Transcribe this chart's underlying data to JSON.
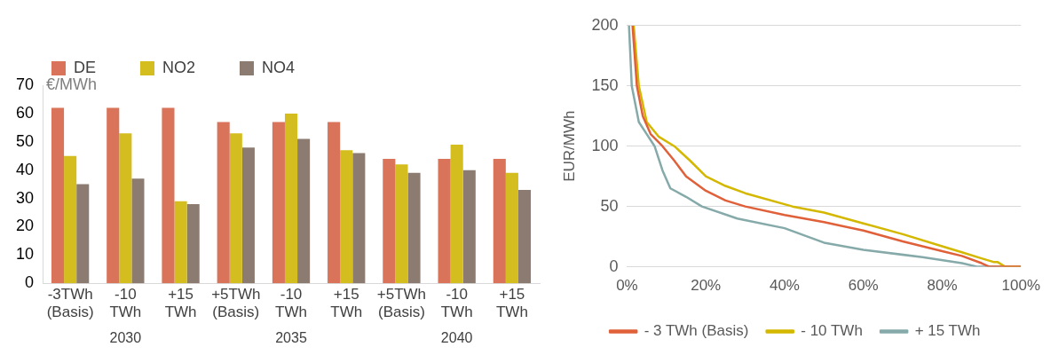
{
  "chart_data": [
    {
      "type": "bar",
      "ylabel": "€/MWh",
      "categories": [
        "-3TWh (Basis)",
        "-10 TWh",
        "+15 TWh",
        "+5TWh (Basis)",
        "-10 TWh",
        "+15 TWh",
        "+5TWh (Basis)",
        "-10 TWh",
        "+15 TWh"
      ],
      "series": [
        {
          "name": "DE",
          "color": "#d9735a",
          "values": [
            62,
            62,
            62,
            57,
            57,
            57,
            44,
            44,
            44
          ]
        },
        {
          "name": "NO2",
          "color": "#d4bd1e",
          "values": [
            45,
            53,
            29,
            53,
            60,
            47,
            42,
            49,
            39
          ]
        },
        {
          "name": "NO4",
          "color": "#8c7b70",
          "values": [
            35,
            37,
            28,
            48,
            51,
            46,
            39,
            40,
            33
          ]
        }
      ],
      "ylim": [
        0,
        70
      ],
      "yticks": [
        0,
        10,
        20,
        30,
        40,
        50,
        60,
        70
      ],
      "grid": false,
      "legend": "top",
      "annotations": [
        "2030",
        "2035",
        "2040"
      ]
    },
    {
      "type": "line",
      "ylabel": "EUR/MWh",
      "series": [
        {
          "name": "- 3 TWh (Basis)",
          "color": "#e0603a",
          "x": [
            1.4,
            2.5,
            4,
            6,
            9,
            12,
            15,
            20,
            25,
            30,
            40,
            50,
            60,
            70,
            80,
            85,
            90,
            92,
            100
          ],
          "values": [
            200,
            150,
            125,
            110,
            100,
            88,
            75,
            63,
            55,
            50,
            43,
            37,
            30,
            21,
            13,
            9,
            3,
            0,
            0
          ]
        },
        {
          "name": "- 10 TWh",
          "color": "#d4b800",
          "x": [
            1.7,
            3,
            5,
            8,
            12,
            16,
            20,
            25,
            30,
            42,
            50,
            60,
            70,
            80,
            85,
            90,
            93,
            94,
            96,
            100
          ],
          "values": [
            200,
            150,
            120,
            108,
            100,
            88,
            75,
            67,
            61,
            50,
            45,
            36,
            27,
            17,
            12,
            7,
            4,
            4,
            0,
            0
          ]
        },
        {
          "name": "+ 15 TWh",
          "color": "#86aaaa",
          "x": [
            0.5,
            1.2,
            3,
            5,
            7,
            9,
            11,
            15,
            19,
            28,
            40,
            50,
            60,
            75,
            85,
            89,
            100
          ],
          "values": [
            200,
            150,
            120,
            110,
            100,
            80,
            65,
            58,
            50,
            40,
            32,
            20,
            14,
            8,
            3,
            0,
            0
          ]
        }
      ],
      "xlim": [
        0,
        100
      ],
      "xticks": [
        {
          "value": 0,
          "label": "0%"
        },
        {
          "value": 20,
          "label": "20%"
        },
        {
          "value": 40,
          "label": "40%"
        },
        {
          "value": 60,
          "label": "60%"
        },
        {
          "value": 80,
          "label": "80%"
        },
        {
          "value": 100,
          "label": "100%"
        }
      ],
      "ylim": [
        0,
        200
      ],
      "yticks": [
        0,
        50,
        100,
        150,
        200
      ],
      "grid": "y",
      "legend": "bottom",
      "marker": "none",
      "line_style": "solid"
    }
  ]
}
